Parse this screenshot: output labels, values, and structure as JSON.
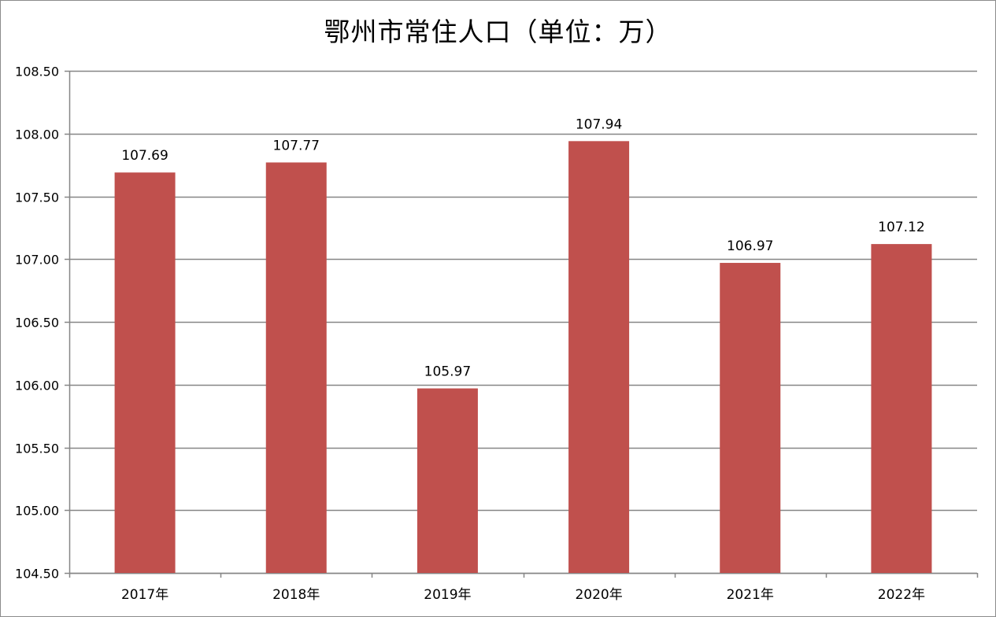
{
  "chart_data": {
    "type": "bar",
    "title": "鄂州市常住人口（单位：万）",
    "categories": [
      "2017年",
      "2018年",
      "2019年",
      "2020年",
      "2021年",
      "2022年"
    ],
    "values": [
      107.69,
      107.77,
      105.97,
      107.94,
      106.97,
      107.12
    ],
    "data_labels": [
      "107.69",
      "107.77",
      "105.97",
      "107.94",
      "106.97",
      "107.12"
    ],
    "ylim": [
      104.5,
      108.5
    ],
    "yticks": [
      104.5,
      105.0,
      105.5,
      106.0,
      106.5,
      107.0,
      107.5,
      108.0,
      108.5
    ],
    "ytick_labels": [
      "104.50",
      "105.00",
      "105.50",
      "106.00",
      "106.50",
      "107.00",
      "107.50",
      "108.00",
      "108.50"
    ],
    "xlabel": "",
    "ylabel": "",
    "grid": true,
    "legend": "none",
    "bar_color": "#c0504d",
    "grid_color": "#868686"
  }
}
